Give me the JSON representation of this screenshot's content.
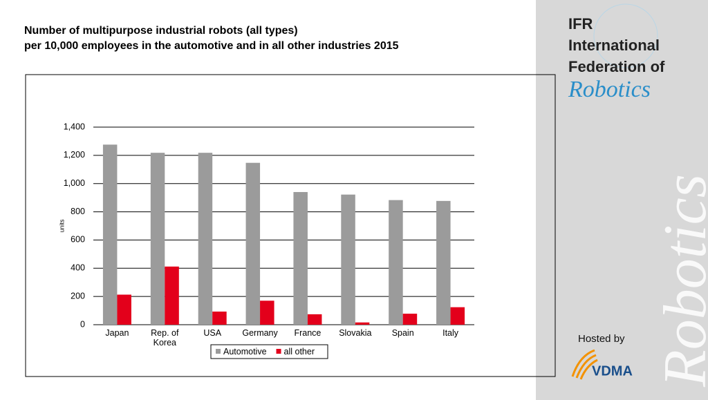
{
  "chart_data": {
    "type": "bar",
    "title": [
      "Number of multipurpose industrial robots (all types)",
      "per 10,000 employees in the automotive and in all other industries 2015"
    ],
    "y_label": "units",
    "categories": [
      "Japan",
      "Rep. of Korea",
      "USA",
      "Germany",
      "France",
      "Slovakia",
      "Spain",
      "Italy"
    ],
    "series": [
      {
        "name": "Automotive",
        "color": "#9b9b9b",
        "values": [
          1276,
          1218,
          1218,
          1147,
          940,
          922,
          883,
          877
        ]
      },
      {
        "name": "all other",
        "color": "#e3001b",
        "values": [
          213,
          412,
          93,
          170,
          74,
          16,
          78,
          124
        ]
      }
    ],
    "ylim": [
      0,
      1400
    ],
    "yticks": [
      0,
      200,
      400,
      600,
      800,
      {
        "value": 1000,
        "label": "1,000"
      },
      {
        "value": 1200,
        "label": "1,200"
      },
      {
        "value": 1400,
        "label": "1,400"
      }
    ],
    "grid": true,
    "legend": "bottom"
  },
  "branding": {
    "org": [
      "IFR",
      "International",
      "Federation of"
    ],
    "script": "Robotics",
    "watermark": "Robotics",
    "hosted_by": "Hosted by",
    "host": "VDMA"
  }
}
